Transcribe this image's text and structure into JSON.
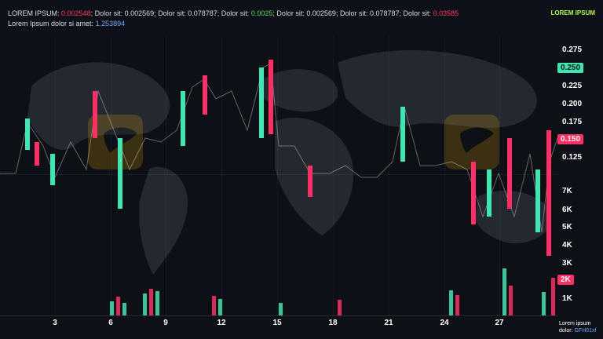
{
  "header": {
    "ticker": {
      "label1": "LOREM IPSUM:",
      "value1": "0.002548",
      "label2": "Dolor sit:",
      "value2": "0.002569",
      "label3": "Dolor sit:",
      "value3": "0.078787",
      "label4": "Dolor sit:",
      "value4": "0.0025",
      "label5": "Dolor sit:",
      "value5": "0.002569",
      "label6": "Dolor sit:",
      "value6": "0.078787",
      "label7": "Dolor sit:",
      "value7": "0.03585"
    },
    "subline": {
      "label": "Lorem Ipsum dolor si amet:",
      "value": "1.253894"
    },
    "right_badge": "LOREM IPSUM"
  },
  "axis": {
    "price_ticks": [
      "0.275",
      "0.225",
      "0.200",
      "0.175",
      "0.125"
    ],
    "price_pill_green": "0.250",
    "price_pill_red": "0.150",
    "volume_ticks": [
      "7K",
      "6K",
      "5K",
      "4K",
      "3K",
      "1K"
    ],
    "volume_pill_red": "2K"
  },
  "x_axis": {
    "labels": [
      "3",
      "6",
      "9",
      "12",
      "15",
      "18",
      "21",
      "24",
      "27"
    ]
  },
  "footer": {
    "line1": "Lorem ipsum",
    "line2_label": "dolor:",
    "line2_tag": "GFH01xf"
  },
  "colors": {
    "up": "#3ee6b2",
    "down": "#ff2f63",
    "text": "#d9dde6",
    "accent": "#b8ff3a",
    "link": "#6ea8ff"
  }
}
